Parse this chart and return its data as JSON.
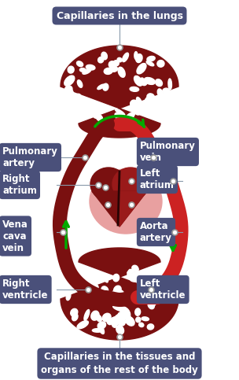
{
  "bg_color": "#ffffff",
  "label_bg": "#4a507a",
  "label_text_color": "#ffffff",
  "dark_red": "#7a1010",
  "bright_red": "#cc2222",
  "pink": "#e8a0a0",
  "green_arrow": "#00aa00",
  "line_color": "#8899aa",
  "dot_color": "#ffffff",
  "dot_edge": "#999999",
  "labels": {
    "top": "Capillaries in the lungs",
    "bottom": "Capillaries in the tissues and\norgans of the rest of the body",
    "pulmonary_artery": "Pulmonary\nartery",
    "pulmonary_vein": "Pulmonary\nvein",
    "right_atrium": "Right\natrium",
    "left_atrium": "Left\natrium",
    "vena_cava": "Vena\ncava\nvein",
    "aorta": "Aorta\nartery",
    "right_ventricle": "Right\nventricle",
    "left_ventricle": "Left\nventricle"
  },
  "fig_width": 3.04,
  "fig_height": 4.83,
  "dpi": 100
}
